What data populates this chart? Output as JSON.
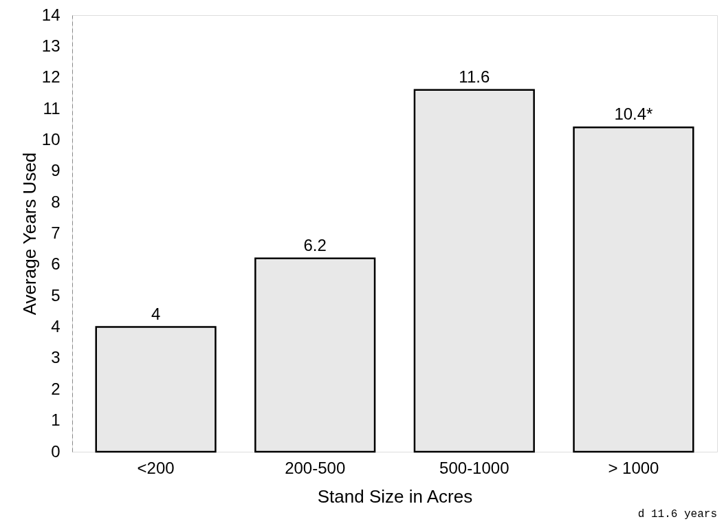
{
  "chart_data": {
    "type": "bar",
    "xlabel": "Stand Size in Acres",
    "ylabel": "Average Years Used",
    "categories": [
      "<200",
      "200-500",
      "500-1000",
      "> 1000"
    ],
    "values": [
      4,
      6.2,
      11.6,
      10.4
    ],
    "value_labels": [
      "4",
      "6.2",
      "11.6",
      "10.4*"
    ],
    "color": "#e8e8e8",
    "ylim": [
      0,
      14
    ],
    "yticks": [
      0,
      1,
      2,
      3,
      4,
      5,
      6,
      7,
      8,
      9,
      10,
      11,
      12,
      13,
      14
    ],
    "grid": false,
    "annotations": [
      "d 11.6 years"
    ]
  }
}
